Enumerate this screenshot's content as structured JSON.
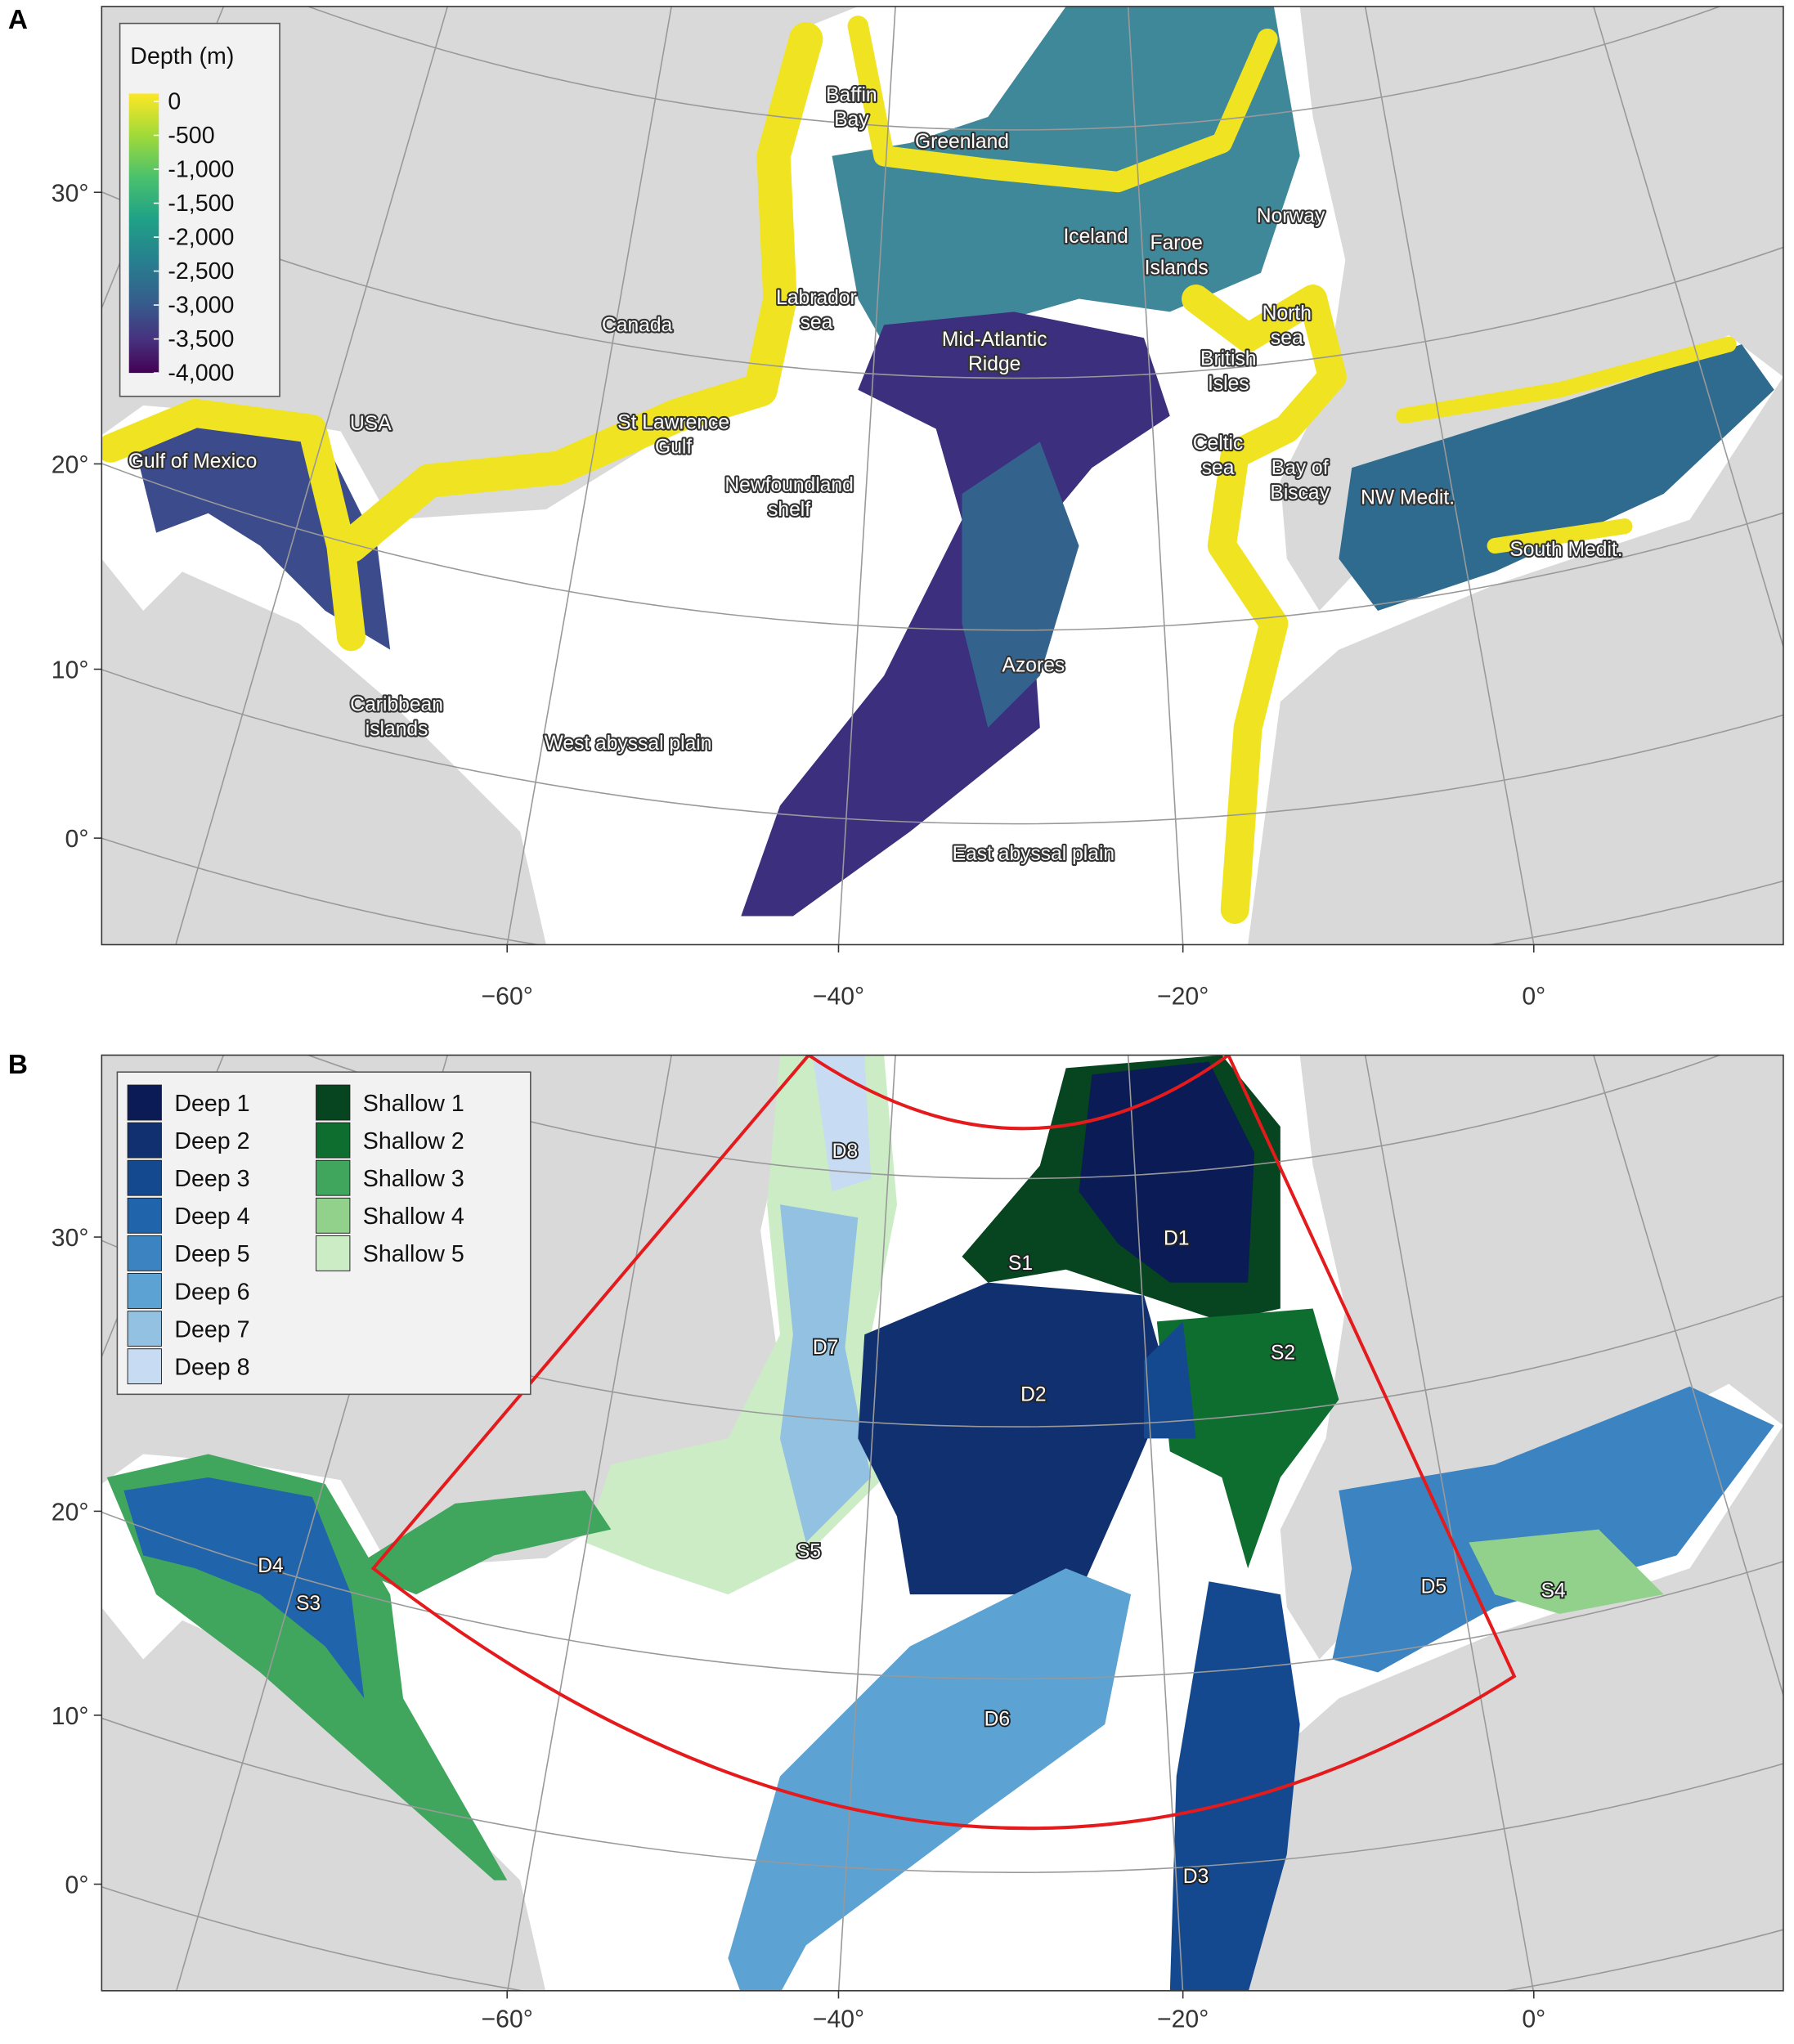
{
  "panels": [
    {
      "tag": "A",
      "legend": {
        "title": "Depth (m)",
        "labels": [
          "0",
          "-500",
          "-1,000",
          "-1,500",
          "-2,000",
          "-2,500",
          "-3,000",
          "-3,500",
          "-4,000"
        ]
      },
      "place_labels": [
        [
          "Baffin",
          "Bay"
        ],
        [
          "Greenland"
        ],
        [
          "Iceland"
        ],
        [
          "Faroe",
          "Islands"
        ],
        [
          "Norway"
        ],
        [
          "Canada"
        ],
        [
          "Labrador",
          "sea"
        ],
        [
          "Mid-Atlantic",
          "Ridge"
        ],
        [
          "North",
          "sea"
        ],
        [
          "British",
          "Isles"
        ],
        [
          "USA"
        ],
        [
          "St Lawrence",
          "Gulf"
        ],
        [
          "Gulf of Mexico"
        ],
        [
          "Celtic",
          "sea"
        ],
        [
          "Bay of",
          "Biscay"
        ],
        [
          "NW Medit."
        ],
        [
          "Newfoundland",
          "shelf"
        ],
        [
          "South Medit."
        ],
        [
          "Azores"
        ],
        [
          "Caribbean",
          "islands"
        ],
        [
          "West abyssal plain"
        ],
        [
          "East abyssal plain"
        ]
      ],
      "y_tick_labels": [
        "30°",
        "20°",
        "10°",
        "0°"
      ],
      "x_tick_labels": [
        "−60°",
        "−40°",
        "−20°",
        "0°"
      ]
    },
    {
      "tag": "B",
      "legend": {
        "deep": [
          {
            "name": "Deep 1",
            "color": "#0b1b55"
          },
          {
            "name": "Deep 2",
            "color": "#10306f"
          },
          {
            "name": "Deep 3",
            "color": "#14498f"
          },
          {
            "name": "Deep 4",
            "color": "#2064ab"
          },
          {
            "name": "Deep 5",
            "color": "#3b84c1"
          },
          {
            "name": "Deep 6",
            "color": "#5ca2d3"
          },
          {
            "name": "Deep 7",
            "color": "#93c1e1"
          },
          {
            "name": "Deep 8",
            "color": "#c7dbf2"
          }
        ],
        "shallow": [
          {
            "name": "Shallow 1",
            "color": "#06451f"
          },
          {
            "name": "Shallow 2",
            "color": "#0d6e30"
          },
          {
            "name": "Shallow 3",
            "color": "#41a65d"
          },
          {
            "name": "Shallow 4",
            "color": "#92d18c"
          },
          {
            "name": "Shallow 5",
            "color": "#cbecc5"
          }
        ]
      },
      "region_labels": [
        "D8",
        "S1",
        "D1",
        "D7",
        "S2",
        "D2",
        "D4",
        "S5",
        "S3",
        "D5",
        "S4",
        "D6",
        "D3"
      ],
      "y_tick_labels": [
        "30°",
        "20°",
        "10°",
        "0°"
      ],
      "x_tick_labels": [
        "−60°",
        "−40°",
        "−20°",
        "0°"
      ]
    }
  ]
}
